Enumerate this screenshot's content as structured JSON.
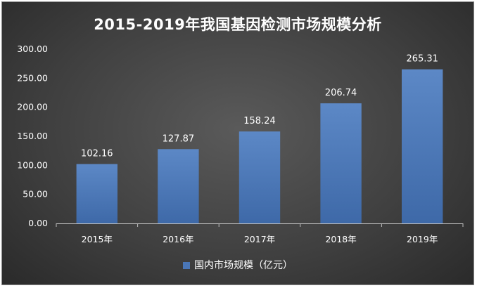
{
  "chart_data": {
    "type": "bar",
    "title": "2015-2019年我国基因检测市场规模分析",
    "categories": [
      "2015年",
      "2016年",
      "2017年",
      "2018年",
      "2019年"
    ],
    "series": [
      {
        "name": "国内市场规模（亿元）",
        "values": [
          102.16,
          127.87,
          158.24,
          206.74,
          265.31
        ]
      }
    ],
    "value_labels": [
      "102.16",
      "127.87",
      "158.24",
      "206.74",
      "265.31"
    ],
    "y_ticks": [
      "0.00",
      "50.00",
      "100.00",
      "150.00",
      "200.00",
      "250.00",
      "300.00"
    ],
    "ylim": [
      0,
      300
    ],
    "xlabel": "",
    "ylabel": "",
    "grid": false,
    "legend": "bottom",
    "colors": {
      "bar": "#4a76b6",
      "background": "#3f3f3f",
      "text": "#ffffff"
    }
  }
}
